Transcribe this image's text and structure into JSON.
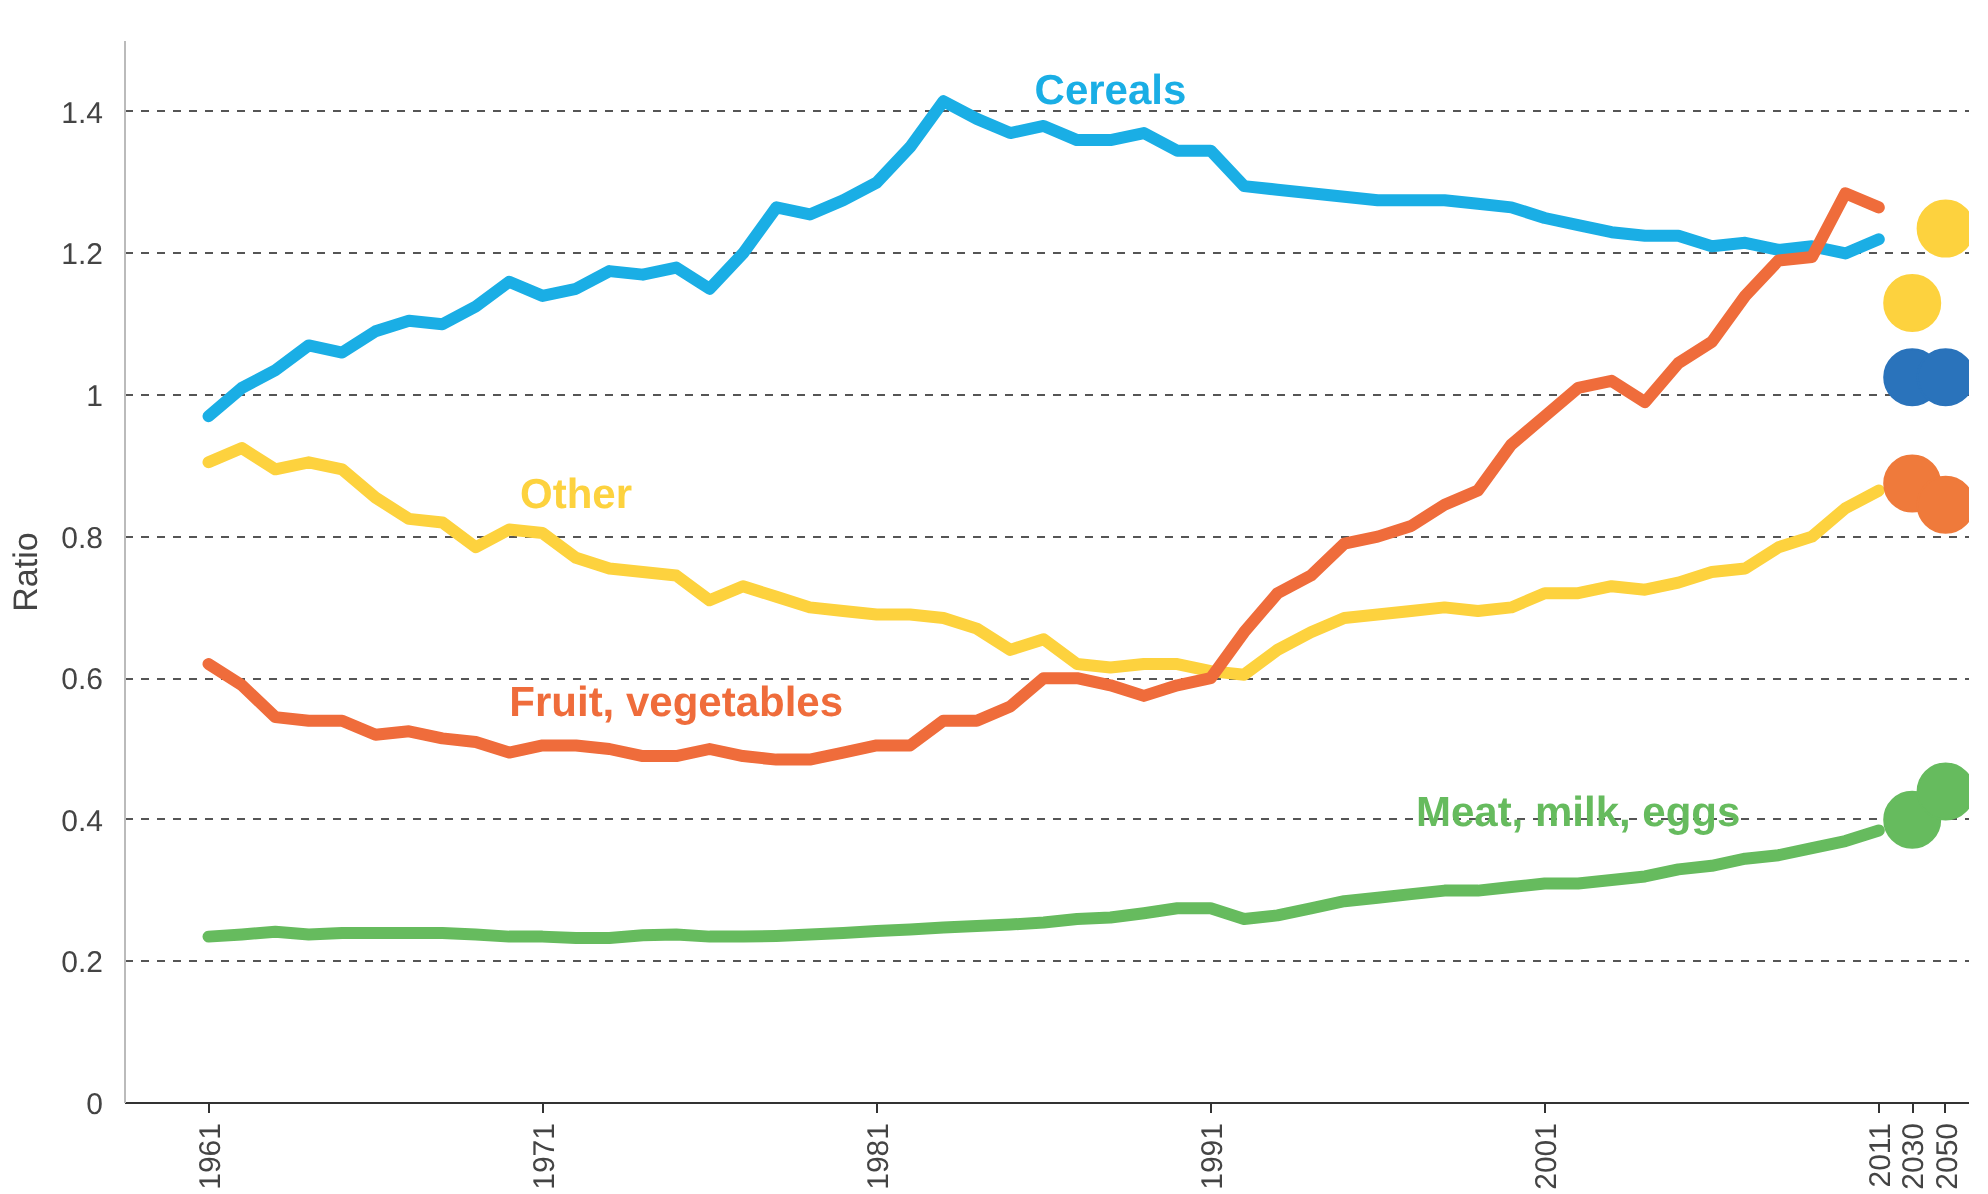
{
  "chart_data": {
    "type": "line",
    "ylabel": "Ratio",
    "categories": [
      "1961",
      null,
      null,
      null,
      null,
      null,
      null,
      null,
      null,
      null,
      "1971",
      null,
      null,
      null,
      null,
      null,
      null,
      null,
      null,
      null,
      "1981",
      null,
      null,
      null,
      null,
      null,
      null,
      null,
      null,
      null,
      "1991",
      null,
      null,
      null,
      null,
      null,
      null,
      null,
      null,
      null,
      "2001",
      null,
      null,
      null,
      null,
      null,
      null,
      null,
      null,
      null,
      "2011",
      "2030",
      "2050"
    ],
    "ylim": [
      0,
      1.5
    ],
    "yticks": [
      0,
      0.2,
      0.4,
      0.6,
      0.8,
      1,
      1.2,
      1.4
    ],
    "grid": "y",
    "marker": "none",
    "line_style": "solid",
    "series": [
      {
        "name": "Cereals",
        "color": "#1aaee5",
        "values": [
          0.97,
          1.01,
          1.035,
          1.07,
          1.06,
          1.09,
          1.105,
          1.1,
          1.125,
          1.16,
          1.14,
          1.15,
          1.175,
          1.17,
          1.18,
          1.15,
          1.2,
          1.265,
          1.255,
          1.275,
          1.3,
          1.35,
          1.415,
          1.39,
          1.37,
          1.38,
          1.36,
          1.36,
          1.37,
          1.345,
          1.345,
          1.295,
          1.29,
          1.285,
          1.28,
          1.275,
          1.275,
          1.275,
          1.27,
          1.265,
          1.25,
          1.24,
          1.23,
          1.225,
          1.225,
          1.21,
          1.215,
          1.205,
          1.21,
          1.2,
          1.22,
          null,
          null
        ]
      },
      {
        "name": "Other",
        "color": "#fdd23e",
        "values": [
          0.905,
          0.925,
          0.895,
          0.905,
          0.895,
          0.855,
          0.825,
          0.82,
          0.785,
          0.81,
          0.805,
          0.77,
          0.755,
          0.75,
          0.745,
          0.71,
          0.73,
          0.715,
          0.7,
          0.695,
          0.69,
          0.69,
          0.685,
          0.67,
          0.64,
          0.655,
          0.62,
          0.615,
          0.62,
          0.62,
          0.61,
          0.605,
          0.64,
          0.665,
          0.685,
          0.69,
          0.695,
          0.7,
          0.695,
          0.7,
          0.72,
          0.72,
          0.73,
          0.725,
          0.735,
          0.75,
          0.755,
          0.785,
          0.8,
          0.84,
          0.865,
          null,
          null
        ]
      },
      {
        "name": "Fruit, vegetables",
        "color": "#ef6c3b",
        "values": [
          0.62,
          0.59,
          0.545,
          0.54,
          0.54,
          0.52,
          0.525,
          0.515,
          0.51,
          0.495,
          0.505,
          0.505,
          0.5,
          0.49,
          0.49,
          0.5,
          0.49,
          0.485,
          0.485,
          0.495,
          0.505,
          0.505,
          0.54,
          0.54,
          0.56,
          0.6,
          0.6,
          0.59,
          0.575,
          0.59,
          0.6,
          0.665,
          0.72,
          0.745,
          0.79,
          0.8,
          0.815,
          0.845,
          0.865,
          0.93,
          0.97,
          1.01,
          1.02,
          0.99,
          1.045,
          1.075,
          1.14,
          1.19,
          1.195,
          1.285,
          1.265,
          null,
          null
        ]
      },
      {
        "name": "Meat, milk, eggs",
        "color": "#66bb5e",
        "values": [
          0.235,
          0.238,
          0.242,
          0.238,
          0.24,
          0.24,
          0.24,
          0.24,
          0.238,
          0.235,
          0.235,
          0.233,
          0.233,
          0.237,
          0.238,
          0.235,
          0.235,
          0.236,
          0.238,
          0.24,
          0.243,
          0.245,
          0.248,
          0.25,
          0.252,
          0.255,
          0.26,
          0.262,
          0.268,
          0.275,
          0.275,
          0.26,
          0.265,
          0.275,
          0.285,
          0.29,
          0.295,
          0.3,
          0.3,
          0.305,
          0.31,
          0.31,
          0.315,
          0.32,
          0.33,
          0.335,
          0.345,
          0.35,
          0.36,
          0.37,
          0.385,
          null,
          null
        ]
      },
      {
        "type": "scatter",
        "marker": "circle",
        "color": "#fdd23e",
        "values": [
          null,
          null,
          null,
          null,
          null,
          null,
          null,
          null,
          null,
          null,
          null,
          null,
          null,
          null,
          null,
          null,
          null,
          null,
          null,
          null,
          null,
          null,
          null,
          null,
          null,
          null,
          null,
          null,
          null,
          null,
          null,
          null,
          null,
          null,
          null,
          null,
          null,
          null,
          null,
          null,
          null,
          null,
          null,
          null,
          null,
          null,
          null,
          null,
          null,
          null,
          null,
          1.13,
          1.235
        ]
      },
      {
        "type": "scatter",
        "marker": "circle",
        "color": "#2a73bb",
        "values": [
          null,
          null,
          null,
          null,
          null,
          null,
          null,
          null,
          null,
          null,
          null,
          null,
          null,
          null,
          null,
          null,
          null,
          null,
          null,
          null,
          null,
          null,
          null,
          null,
          null,
          null,
          null,
          null,
          null,
          null,
          null,
          null,
          null,
          null,
          null,
          null,
          null,
          null,
          null,
          null,
          null,
          null,
          null,
          null,
          null,
          null,
          null,
          null,
          null,
          null,
          null,
          1.025,
          1.025
        ]
      },
      {
        "type": "scatter",
        "marker": "circle",
        "color": "#ef7a3b",
        "values": [
          null,
          null,
          null,
          null,
          null,
          null,
          null,
          null,
          null,
          null,
          null,
          null,
          null,
          null,
          null,
          null,
          null,
          null,
          null,
          null,
          null,
          null,
          null,
          null,
          null,
          null,
          null,
          null,
          null,
          null,
          null,
          null,
          null,
          null,
          null,
          null,
          null,
          null,
          null,
          null,
          null,
          null,
          null,
          null,
          null,
          null,
          null,
          null,
          null,
          null,
          null,
          0.875,
          0.845
        ]
      },
      {
        "type": "scatter",
        "marker": "circle",
        "color": "#66bb5e",
        "values": [
          null,
          null,
          null,
          null,
          null,
          null,
          null,
          null,
          null,
          null,
          null,
          null,
          null,
          null,
          null,
          null,
          null,
          null,
          null,
          null,
          null,
          null,
          null,
          null,
          null,
          null,
          null,
          null,
          null,
          null,
          null,
          null,
          null,
          null,
          null,
          null,
          null,
          null,
          null,
          null,
          null,
          null,
          null,
          null,
          null,
          null,
          null,
          null,
          null,
          null,
          null,
          0.4,
          0.44
        ]
      }
    ]
  }
}
